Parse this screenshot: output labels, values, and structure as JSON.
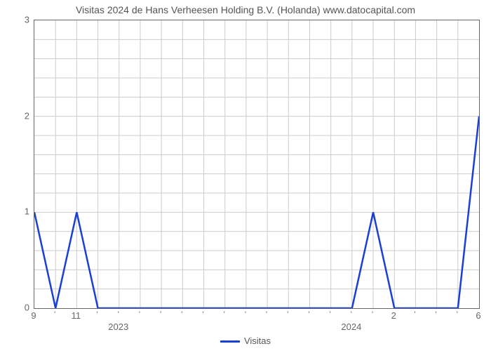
{
  "chart": {
    "type": "line",
    "title": "Visitas 2024 de Hans Verheesen Holding B.V. (Holanda) www.datocapital.com",
    "title_fontsize": 14,
    "title_color": "#555555",
    "background_color": "#ffffff",
    "plot_border_color": "#666666",
    "grid_color": "#cccccc",
    "grid_width": 1,
    "line_color": "#1a3fd6",
    "line_width": 2.5,
    "y": {
      "min": 0,
      "max": 3,
      "ticks": [
        0,
        1,
        2,
        3
      ],
      "label_fontsize": 13,
      "label_color": "#666666"
    },
    "x": {
      "point_count": 22,
      "major_labels": [
        {
          "index": 0,
          "text": "9"
        },
        {
          "index": 2,
          "text": "11"
        },
        {
          "index": 17,
          "text": "2"
        },
        {
          "index": 21,
          "text": "6"
        }
      ],
      "minor_mark_indices": [
        1,
        3,
        4,
        5,
        6,
        7,
        8,
        9,
        10,
        11,
        12,
        13,
        14,
        15,
        16,
        18,
        19,
        20
      ],
      "year_labels": [
        {
          "index": 4,
          "text": "2023"
        },
        {
          "index": 15,
          "text": "2024"
        }
      ],
      "label_fontsize": 13,
      "label_color": "#666666"
    },
    "series": {
      "name": "Visitas",
      "values": [
        1,
        0,
        1,
        0,
        0,
        0,
        0,
        0,
        0,
        0,
        0,
        0,
        0,
        0,
        0,
        0,
        1,
        0,
        0,
        0,
        0,
        2
      ]
    },
    "legend": {
      "label": "Visitas",
      "fontsize": 13,
      "color": "#555555"
    }
  }
}
